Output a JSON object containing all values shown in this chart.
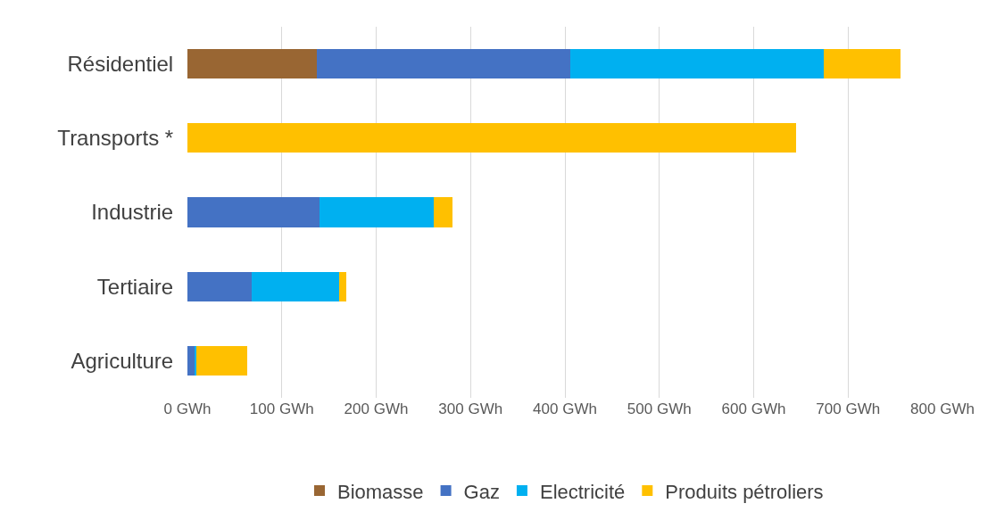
{
  "chart_data": {
    "type": "bar",
    "orientation": "horizontal",
    "stacked": true,
    "categories": [
      "Résidentiel",
      "Transports *",
      "Industrie",
      "Tertiaire",
      "Agriculture"
    ],
    "series": [
      {
        "name": "Biomasse",
        "color": "#996633",
        "values": [
          137,
          0,
          0,
          0,
          0
        ]
      },
      {
        "name": "Gaz",
        "color": "#4472c4",
        "values": [
          269,
          0,
          140,
          68,
          8
        ]
      },
      {
        "name": "Electricité",
        "color": "#00b0f0",
        "values": [
          268,
          0,
          121,
          93,
          1
        ]
      },
      {
        "name": "Produits pétroliers",
        "color": "#ffc000",
        "values": [
          82,
          645,
          20,
          7,
          54
        ]
      }
    ],
    "xlim": [
      0,
      800
    ],
    "xticks": [
      {
        "value": 0,
        "label": "0 GWh"
      },
      {
        "value": 100,
        "label": "100 GWh"
      },
      {
        "value": 200,
        "label": "200 GWh"
      },
      {
        "value": 300,
        "label": "300 GWh"
      },
      {
        "value": 400,
        "label": "400 GWh"
      },
      {
        "value": 500,
        "label": "500 GWh"
      },
      {
        "value": 600,
        "label": "600 GWh"
      },
      {
        "value": 700,
        "label": "700 GWh"
      },
      {
        "value": 800,
        "label": "800 GWh"
      }
    ],
    "grid": "x",
    "legend": "bottom"
  }
}
